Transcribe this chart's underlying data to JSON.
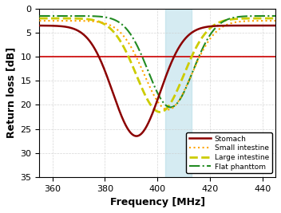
{
  "freq_min": 355,
  "freq_max": 445,
  "ylim_min": 0,
  "ylim_max": 35,
  "yticks": [
    0,
    5,
    10,
    15,
    20,
    25,
    30,
    35
  ],
  "xticks": [
    360,
    380,
    400,
    420,
    440
  ],
  "xlabel": "Frequency [MHz]",
  "ylabel": "Return loss [dB]",
  "ref_line_y": 10,
  "ref_line_color": "#cc0000",
  "shade_x_start": 403,
  "shade_x_end": 413,
  "shade_color": "#add8e6",
  "shade_alpha": 0.5,
  "stomach_color": "#8b0000",
  "small_int_color": "#ffa500",
  "large_int_color": "#cccc00",
  "flat_ph_color": "#228b22",
  "background_color": "#ffffff",
  "grid_color": "#cccccc"
}
